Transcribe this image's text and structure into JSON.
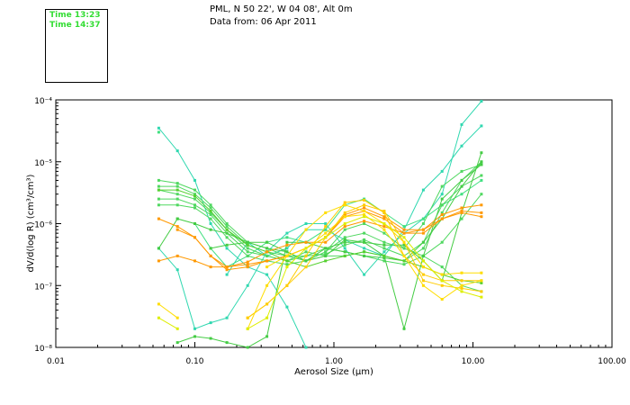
{
  "header": {
    "location": "PML, N 50 22', W 04 08', Alt 0m",
    "date": "Data from: 06 Apr 2011"
  },
  "legend": [
    {
      "label": "Time 13:23",
      "color": "#33dd33"
    },
    {
      "label": "Time 14:37",
      "color": "#33dd33"
    }
  ],
  "chart_data": {
    "type": "line",
    "title": "",
    "xlabel": "Aerosol Size (μm)",
    "ylabel": "dV/d(log R) (cm³/cm³)",
    "xscale": "log",
    "yscale": "log",
    "xlim": [
      0.01,
      100
    ],
    "ylim": [
      1e-08,
      0.0001
    ],
    "x_ticks": [
      {
        "value": 0.01,
        "label": "0.01"
      },
      {
        "value": 0.1,
        "label": "0.10"
      },
      {
        "value": 1,
        "label": "1.00"
      },
      {
        "value": 10,
        "label": "10.00"
      },
      {
        "value": 100,
        "label": "100.00"
      }
    ],
    "y_ticks": [
      {
        "value": 1e-08,
        "label": "10⁻⁸"
      },
      {
        "value": 1e-07,
        "label": "10⁻⁷"
      },
      {
        "value": 1e-06,
        "label": "10⁻⁶"
      },
      {
        "value": 1e-05,
        "label": "10⁻⁵"
      },
      {
        "value": 0.0001,
        "label": "10⁻⁴"
      }
    ],
    "x": [
      0.055,
      0.075,
      0.1,
      0.13,
      0.17,
      0.24,
      0.33,
      0.46,
      0.63,
      0.87,
      1.2,
      1.65,
      2.3,
      3.2,
      4.4,
      6.0,
      8.3,
      11.5
    ],
    "series": [
      {
        "color": "#30d8b0",
        "values": [
          3.5e-05,
          1.5e-05,
          5e-06,
          1e-06,
          4e-07,
          2e-07,
          1.5e-07,
          4.5e-08,
          1e-08,
          null,
          null,
          null,
          null,
          null,
          null,
          null,
          null,
          null
        ]
      },
      {
        "color": "#30d8b0",
        "values": [
          4e-07,
          1.8e-07,
          2e-08,
          2.5e-08,
          3e-08,
          1e-07,
          3.5e-07,
          7e-07,
          1e-06,
          1e-06,
          4e-07,
          1.5e-07,
          3.5e-07,
          7e-07,
          1.2e-06,
          3e-06,
          4e-05,
          9.5e-05
        ]
      },
      {
        "color": "#30d8b0",
        "values": [
          null,
          null,
          null,
          null,
          1.5e-07,
          5e-07,
          3e-07,
          4e-07,
          8e-07,
          8e-07,
          5.5e-07,
          4e-07,
          3e-07,
          8e-07,
          3.5e-06,
          7e-06,
          1.8e-05,
          3.8e-05
        ]
      },
      {
        "color": "#40e080",
        "values": [
          3e-05,
          null,
          1e-06,
          4e-07,
          2e-07,
          3e-07,
          5e-07,
          6e-07,
          5e-07,
          8e-07,
          2e-06,
          2.5e-06,
          1.5e-06,
          9e-07,
          1.2e-06,
          2e-06,
          3e-06,
          5e-06
        ]
      },
      {
        "color": "#50d860",
        "values": [
          5e-06,
          4.5e-06,
          3.5e-06,
          2e-06,
          1e-06,
          5e-07,
          4e-07,
          3e-07,
          2.5e-07,
          3.5e-07,
          6e-07,
          7e-07,
          5e-07,
          4e-07,
          1e-06,
          4e-06,
          7e-06,
          9e-06
        ]
      },
      {
        "color": "#50d860",
        "values": [
          4e-06,
          4e-06,
          3e-06,
          1.8e-06,
          9e-07,
          4.5e-07,
          3.5e-07,
          3e-07,
          3e-07,
          3.2e-07,
          4.5e-07,
          5.5e-07,
          4e-07,
          3e-07,
          5e-07,
          2e-06,
          4e-06,
          6e-06
        ]
      },
      {
        "color": "#50d860",
        "values": [
          3.5e-06,
          3e-06,
          2.5e-06,
          1.5e-06,
          8e-07,
          4e-07,
          3e-07,
          2.5e-07,
          3e-07,
          4e-07,
          3.5e-07,
          3e-07,
          2.5e-07,
          2.2e-07,
          3e-07,
          5e-07,
          1.2e-06,
          3e-06
        ]
      },
      {
        "color": "#50d860",
        "values": [
          2.5e-06,
          2.5e-06,
          2e-06,
          1.4e-06,
          7e-07,
          3.5e-07,
          3e-07,
          2.5e-07,
          3.5e-07,
          3e-07,
          3e-07,
          3.5e-07,
          3e-07,
          2.5e-07,
          4e-07,
          1.5e-06,
          5e-06,
          1e-05
        ]
      },
      {
        "color": "#50d860",
        "values": [
          2e-06,
          2e-06,
          1.8e-06,
          1.2e-06,
          6e-07,
          3e-07,
          2.5e-07,
          2.2e-07,
          2.5e-07,
          3.5e-07,
          8e-07,
          1e-06,
          7e-07,
          4e-07,
          3e-07,
          2e-07,
          1e-07,
          8e-08
        ]
      },
      {
        "color": "#44cc44",
        "values": [
          null,
          1.2e-06,
          null,
          4e-07,
          4.5e-07,
          5e-07,
          4e-07,
          3.5e-07,
          2.5e-07,
          4e-07,
          5e-07,
          5e-07,
          4.5e-07,
          4.5e-07,
          2.5e-07,
          1.2e-07,
          1.5e-06,
          1.4e-05
        ]
      },
      {
        "color": "#44cc44",
        "values": [
          4e-07,
          1.2e-06,
          1e-06,
          8e-07,
          7e-07,
          5e-07,
          5e-07,
          3.5e-07,
          2.5e-07,
          3e-07,
          5.5e-07,
          5e-07,
          3e-07,
          2e-08,
          3e-07,
          2.5e-06,
          5e-06,
          9e-06
        ]
      },
      {
        "color": "#44cc44",
        "values": [
          null,
          1.2e-08,
          1.5e-08,
          1.4e-08,
          1.2e-08,
          1e-08,
          1.5e-08,
          5e-07,
          5e-07,
          4e-07,
          3.5e-07,
          3e-07,
          2.8e-07,
          2.5e-07,
          5e-07,
          1.2e-06,
          4e-06,
          1e-05
        ]
      },
      {
        "color": "#55d030",
        "values": [
          3.5e-06,
          3.5e-06,
          2.8e-06,
          1.6e-06,
          8e-07,
          4.5e-07,
          3.5e-07,
          2.5e-07,
          2e-07,
          2.5e-07,
          3e-07,
          3.5e-07,
          3e-07,
          2.5e-07,
          2e-07,
          1.5e-07,
          1.2e-07,
          1.1e-07
        ]
      },
      {
        "color": "#ff9900",
        "values": [
          1.2e-06,
          9e-07,
          6e-07,
          3e-07,
          1.8e-07,
          2e-07,
          2.5e-07,
          3e-07,
          4e-07,
          6e-07,
          1.4e-06,
          1.8e-06,
          1.3e-06,
          8e-07,
          8e-07,
          1.2e-06,
          1.6e-06,
          1.5e-06
        ]
      },
      {
        "color": "#ff9900",
        "values": [
          null,
          8e-07,
          6e-07,
          3e-07,
          2e-07,
          2.2e-07,
          2.5e-07,
          3e-07,
          4e-07,
          6e-07,
          1.3e-06,
          1.6e-06,
          1.2e-06,
          7e-07,
          7e-07,
          1.2e-06,
          1.5e-06,
          1.3e-06
        ]
      },
      {
        "color": "#ff9900",
        "values": [
          2.5e-07,
          3e-07,
          2.5e-07,
          2e-07,
          2e-07,
          2.4e-07,
          3.5e-07,
          4.5e-07,
          5e-07,
          5e-07,
          9e-07,
          1.1e-06,
          9e-07,
          7e-07,
          8e-07,
          1.4e-06,
          1.8e-06,
          2e-06
        ]
      },
      {
        "color": "#ffcc00",
        "values": [
          null,
          null,
          null,
          null,
          null,
          3e-08,
          5e-08,
          1e-07,
          2e-07,
          6e-07,
          1.5e-06,
          2e-06,
          1.6e-06,
          5e-07,
          1.2e-07,
          1e-07,
          9e-08,
          8e-08
        ]
      },
      {
        "color": "#ffcc00",
        "values": [
          null,
          null,
          null,
          null,
          null,
          3e-08,
          5e-08,
          1e-07,
          3e-07,
          9e-07,
          2.2e-06,
          2.4e-06,
          1.5e-06,
          3e-07,
          1.5e-07,
          1.2e-07,
          1.2e-07,
          1.2e-07
        ]
      },
      {
        "color": "#ffdd00",
        "values": [
          null,
          null,
          null,
          null,
          null,
          2e-08,
          1e-07,
          3e-07,
          8e-07,
          1.5e-06,
          2e-06,
          1.6e-06,
          1e-06,
          5e-07,
          2e-07,
          1.5e-07,
          1.6e-07,
          1.6e-07
        ]
      },
      {
        "color": "#ffdd00",
        "values": [
          5e-08,
          3e-08,
          null,
          null,
          null,
          null,
          2e-07,
          3e-07,
          4e-07,
          7e-07,
          1.3e-06,
          1.4e-06,
          8e-07,
          3e-07,
          1e-07,
          6e-08,
          1e-07,
          1.2e-07
        ]
      },
      {
        "color": "#ddee00",
        "values": [
          3e-08,
          2e-08,
          null,
          null,
          null,
          2e-08,
          3e-08,
          2e-07,
          4e-07,
          6e-07,
          1e-06,
          1.3e-06,
          1e-06,
          6e-07,
          2.5e-07,
          1.2e-07,
          8e-08,
          6.5e-08
        ]
      }
    ]
  }
}
